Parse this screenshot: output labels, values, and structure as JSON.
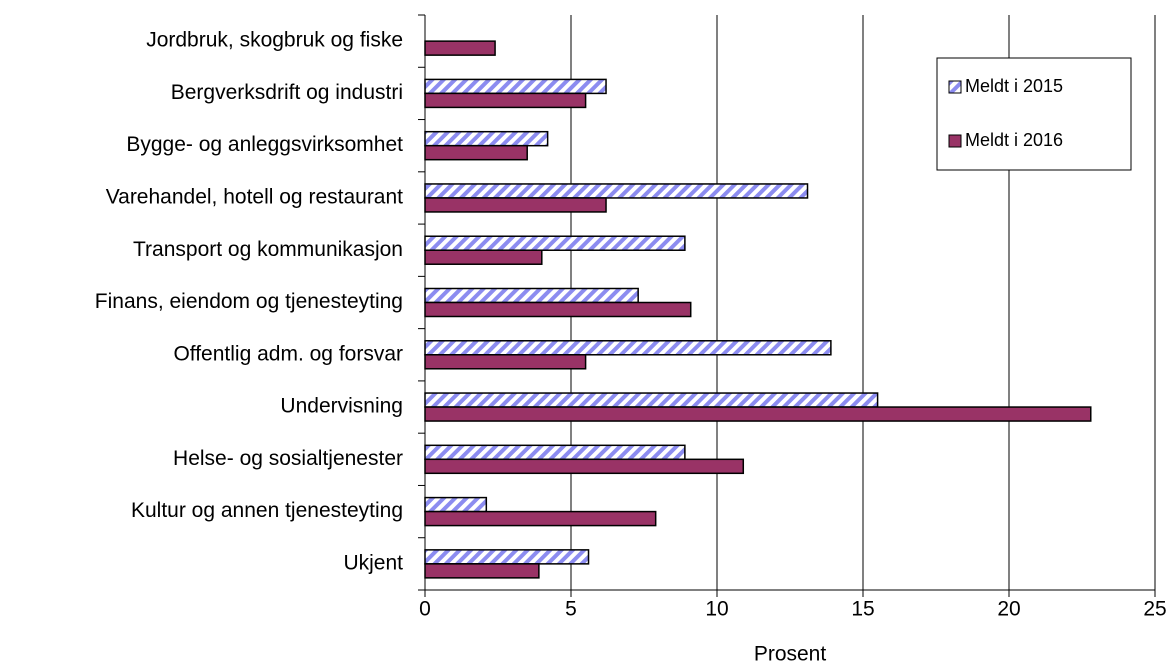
{
  "chart_data": {
    "type": "hbar",
    "categories": [
      "Jordbruk, skogbruk og fiske",
      "Bergverksdrift og industri",
      "Bygge- og anleggsvirksomhet",
      "Varehandel, hotell og restaurant",
      "Transport og kommunikasjon",
      "Finans, eiendom og tjenesteyting",
      "Offentlig adm. og forsvar",
      "Undervisning",
      "Helse- og sosialtjenester",
      "Kultur og annen tjenesteyting",
      "Ukjent"
    ],
    "series": [
      {
        "name": "Meldt i 2015",
        "color": "#8c8cf0",
        "hatch": true,
        "values": [
          null,
          6.2,
          4.2,
          13.1,
          8.9,
          7.3,
          13.9,
          15.5,
          8.9,
          2.1,
          5.6
        ]
      },
      {
        "name": "Meldt i 2016",
        "color": "#993366",
        "hatch": false,
        "values": [
          2.4,
          5.5,
          3.5,
          6.2,
          4.0,
          9.1,
          5.5,
          22.8,
          10.9,
          7.9,
          3.9
        ]
      }
    ],
    "xlabel": "Prosent",
    "xlim": [
      0,
      25
    ],
    "xticks": [
      0,
      5,
      10,
      15,
      20,
      25
    ],
    "grid": true,
    "legend": "upper right"
  }
}
